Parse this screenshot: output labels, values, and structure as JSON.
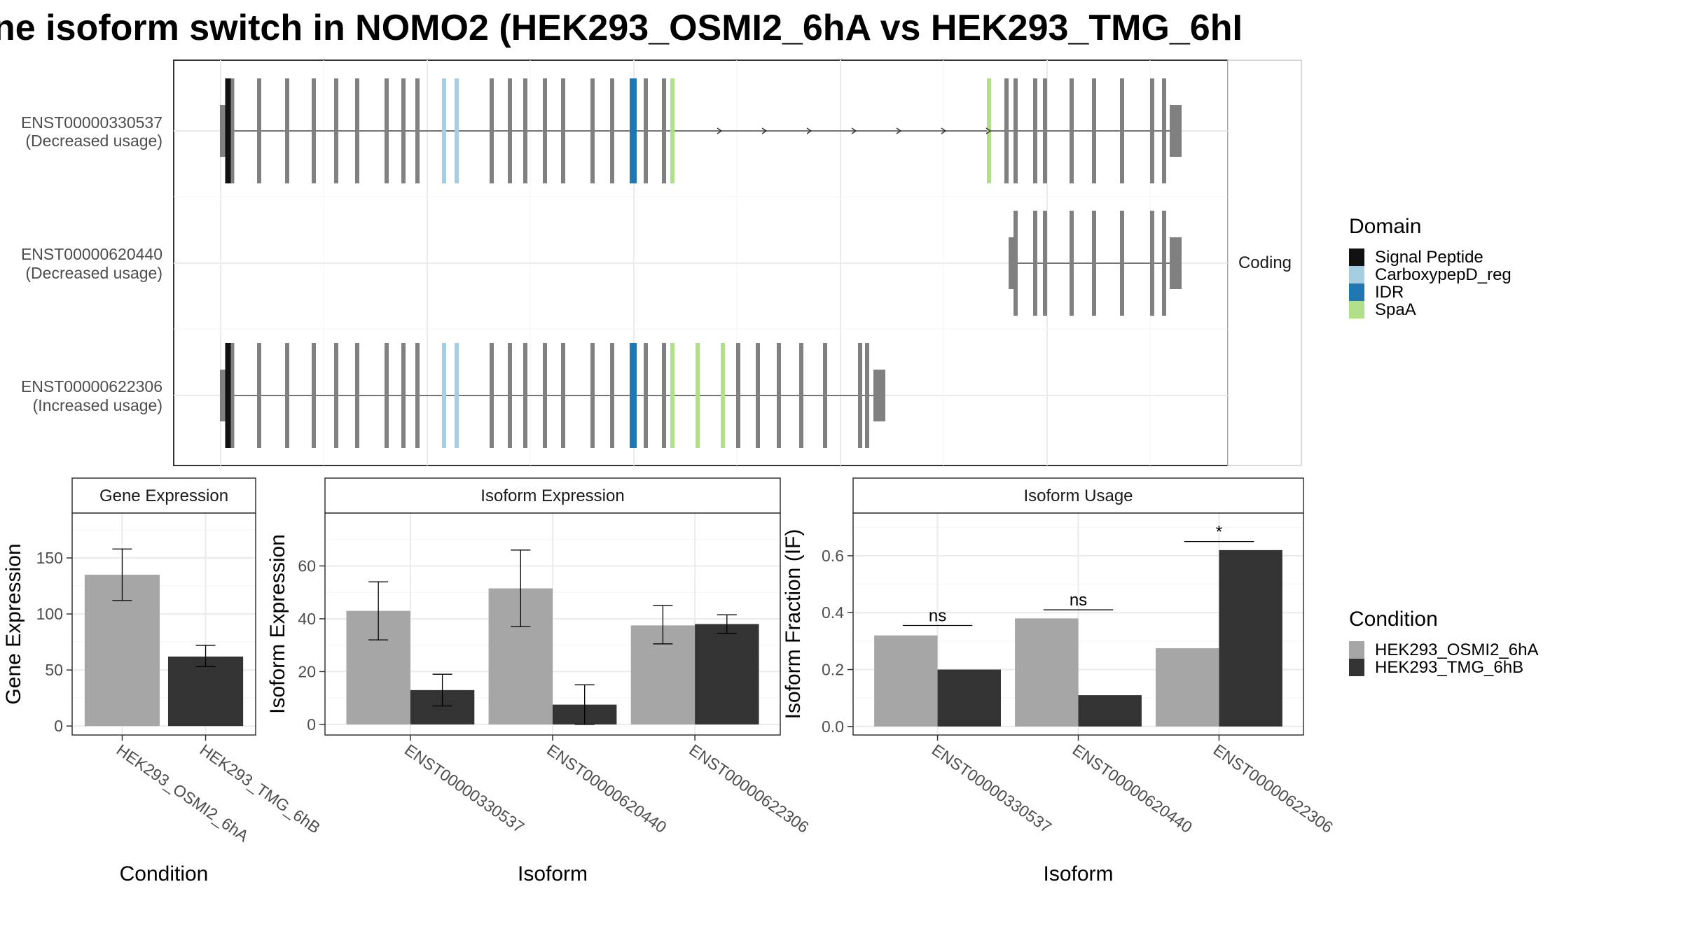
{
  "title": "ne isoform switch in NOMO2 (HEK293_OSMI2_6hA vs HEK293_TMG_6hI",
  "structure_panel": {
    "facet_label": "Coding",
    "isoforms": [
      {
        "id": "ENST00000330537",
        "usage": "(Decreased usage)"
      },
      {
        "id": "ENST00000620440",
        "usage": "(Decreased usage)"
      },
      {
        "id": "ENST00000622306",
        "usage": "(Increased usage)"
      }
    ],
    "domain_legend": {
      "title": "Domain",
      "items": [
        {
          "label": "Signal Peptide",
          "color": "#111111"
        },
        {
          "label": "CarboxypepD_reg",
          "color": "#a6cee3"
        },
        {
          "label": "IDR",
          "color": "#1f78b4"
        },
        {
          "label": "SpaA",
          "color": "#b2df8a"
        }
      ]
    }
  },
  "condition_legend": {
    "title": "Condition",
    "items": [
      {
        "label": "HEK293_OSMI2_6hA",
        "color": "#a6a6a6"
      },
      {
        "label": "HEK293_TMG_6hB",
        "color": "#333333"
      }
    ]
  },
  "chart_data": [
    {
      "type": "bar",
      "panel_title": "Gene Expression",
      "xlabel": "Condition",
      "ylabel": "Gene Expression",
      "categories": [
        "HEK293_OSMI2_6hA",
        "HEK293_TMG_6hB"
      ],
      "values": [
        135,
        62
      ],
      "errors_low": [
        112,
        53
      ],
      "errors_high": [
        158,
        72
      ],
      "yticks": [
        0,
        50,
        100,
        150
      ],
      "ylim": [
        -8,
        190
      ]
    },
    {
      "type": "bar",
      "panel_title": "Isoform Expression",
      "xlabel": "Isoform",
      "ylabel": "Isoform Expression",
      "categories": [
        "ENST00000330537",
        "ENST00000620440",
        "ENST00000622306"
      ],
      "series": [
        {
          "name": "HEK293_OSMI2_6hA",
          "values": [
            43,
            51.5,
            37.5
          ],
          "errors_low": [
            32,
            37,
            30.5
          ],
          "errors_high": [
            54,
            66,
            45
          ]
        },
        {
          "name": "HEK293_TMG_6hB",
          "values": [
            13,
            7.5,
            38
          ],
          "errors_low": [
            7,
            0,
            34.5
          ],
          "errors_high": [
            19,
            15,
            41.5
          ]
        }
      ],
      "yticks": [
        0,
        20,
        40,
        60
      ],
      "ylim": [
        -4,
        80
      ]
    },
    {
      "type": "bar",
      "panel_title": "Isoform Usage",
      "xlabel": "Isoform",
      "ylabel": "Isoform Fraction (IF)",
      "categories": [
        "ENST00000330537",
        "ENST00000620440",
        "ENST00000622306"
      ],
      "series": [
        {
          "name": "HEK293_OSMI2_6hA",
          "values": [
            0.32,
            0.38,
            0.275
          ]
        },
        {
          "name": "HEK293_TMG_6hB",
          "values": [
            0.2,
            0.11,
            0.62
          ]
        }
      ],
      "significance": [
        "ns",
        "ns",
        "*"
      ],
      "significance_y": [
        0.355,
        0.41,
        0.65
      ],
      "yticks": [
        0.0,
        0.2,
        0.4,
        0.6
      ],
      "ylim": [
        -0.03,
        0.75
      ]
    }
  ]
}
